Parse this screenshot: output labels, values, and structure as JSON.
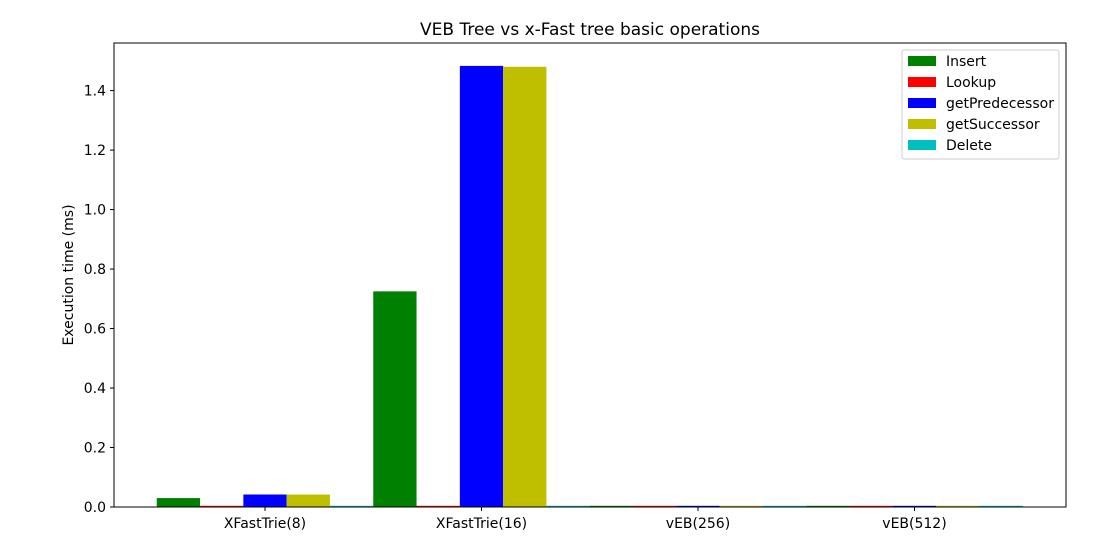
{
  "chart_data": {
    "type": "bar",
    "title": "VEB Tree vs x-Fast tree basic operations",
    "xlabel": "",
    "ylabel": "Execution time (ms)",
    "ylim": [
      0,
      1.56
    ],
    "yticks": [
      "0.0",
      "0.2",
      "0.4",
      "0.6",
      "0.8",
      "1.0",
      "1.2",
      "1.4"
    ],
    "ytick_values": [
      0,
      0.2,
      0.4,
      0.6,
      0.8,
      1.0,
      1.2,
      1.4
    ],
    "categories": [
      "XFastTrie(8)",
      "XFastTrie(16)",
      "vEB(256)",
      "vEB(512)"
    ],
    "legend_position": "top-right",
    "grid": false,
    "series": [
      {
        "name": "Insert",
        "color": "#008000",
        "values": [
          0.03,
          0.725,
          0.002,
          0.002
        ]
      },
      {
        "name": "Lookup",
        "color": "#ff0000",
        "values": [
          0.002,
          0.002,
          0.002,
          0.002
        ]
      },
      {
        "name": "getPredecessor",
        "color": "#0000ff",
        "values": [
          0.042,
          1.483,
          0.002,
          0.002
        ]
      },
      {
        "name": "getSuccessor",
        "color": "#bfbf00",
        "values": [
          0.042,
          1.48,
          0.002,
          0.002
        ]
      },
      {
        "name": "Delete",
        "color": "#00bfbf",
        "values": [
          0.002,
          0.002,
          0.002,
          0.002
        ]
      }
    ]
  }
}
